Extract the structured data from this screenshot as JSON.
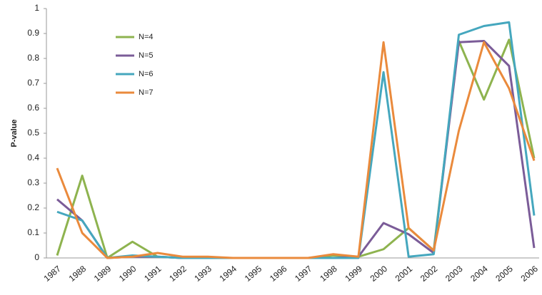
{
  "chart_data": {
    "type": "line",
    "y_label": "P-value",
    "categories": [
      "1987",
      "1988",
      "1989",
      "1990",
      "1991",
      "1992",
      "1993",
      "1994",
      "1995",
      "1996",
      "1997",
      "1998",
      "1999",
      "2000",
      "2001",
      "2002",
      "2003",
      "2004",
      "2005",
      "2006"
    ],
    "series": [
      {
        "name": "N=4",
        "color": "#8eb34f",
        "values": [
          0.01,
          0.33,
          0.0,
          0.065,
          0.005,
          0.0,
          0.0,
          0.0,
          0.0,
          0.0,
          0.0,
          0.01,
          0.005,
          0.035,
          0.12,
          0.03,
          0.87,
          0.635,
          0.875,
          0.4
        ]
      },
      {
        "name": "N=5",
        "color": "#7b5c98",
        "values": [
          0.235,
          0.15,
          0.0,
          0.005,
          0.005,
          0.0,
          0.0,
          0.0,
          0.0,
          0.0,
          0.0,
          0.0,
          0.005,
          0.14,
          0.095,
          0.02,
          0.865,
          0.87,
          0.77,
          0.04
        ]
      },
      {
        "name": "N=6",
        "color": "#45a7be",
        "values": [
          0.185,
          0.15,
          0.0,
          0.01,
          0.005,
          0.0,
          0.0,
          0.0,
          0.0,
          0.0,
          0.0,
          0.0,
          0.0,
          0.745,
          0.005,
          0.015,
          0.895,
          0.93,
          0.945,
          0.17
        ]
      },
      {
        "name": "N=7",
        "color": "#ea8a3c",
        "values": [
          0.36,
          0.1,
          0.0,
          0.005,
          0.02,
          0.005,
          0.005,
          0.0,
          0.0,
          0.0,
          0.0,
          0.015,
          0.005,
          0.865,
          0.12,
          0.03,
          0.51,
          0.865,
          0.68,
          0.39
        ]
      }
    ],
    "ylim": [
      0,
      1
    ],
    "yticks": [
      0,
      0.1,
      0.2,
      0.3,
      0.4,
      0.5,
      0.6,
      0.7,
      0.8,
      0.9,
      1
    ],
    "grid": false,
    "legend": "upper-left"
  }
}
